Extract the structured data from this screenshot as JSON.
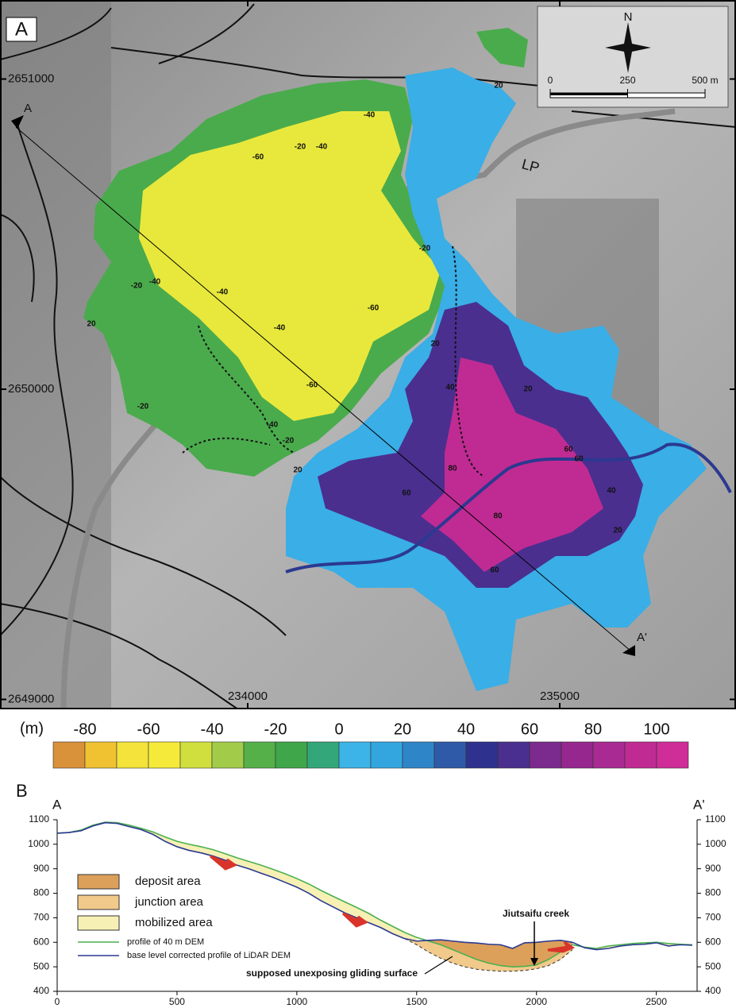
{
  "chart_data": [
    {
      "type": "map",
      "panel_label": "A",
      "northings": [
        2651000,
        2650000,
        2649000
      ],
      "eastings": [
        234000,
        235000
      ],
      "road_label": "LP",
      "north": "N",
      "contour_labels": [
        -40,
        -20,
        -40,
        -60,
        -20,
        -60,
        -40,
        -40,
        -40,
        -20,
        20,
        -60,
        -20,
        -40,
        -20,
        20,
        20,
        20,
        40,
        20,
        80,
        60,
        80,
        60,
        60,
        60,
        40,
        20
      ],
      "section_labels": [
        "A",
        "A'"
      ],
      "scalebar": {
        "xlim": [
          0,
          500
        ],
        "xticks": [
          0,
          250,
          {
            "value": 500,
            "label": "500 m"
          }
        ]
      }
    },
    {
      "type": "colorbar",
      "unit": "(m)",
      "bins": [
        -90,
        -80,
        -70,
        -60,
        -50,
        -40,
        -30,
        -20,
        -10,
        0,
        10,
        20,
        30,
        40,
        50,
        60,
        70,
        80,
        90,
        100,
        110
      ],
      "colors": [
        "#d9913a",
        "#f0c232",
        "#f3e33a",
        "#f5ea3a",
        "#d0df3e",
        "#a3cb4a",
        "#55b049",
        "#3fa64a",
        "#34a77a",
        "#3cb4e8",
        "#33a6e0",
        "#2e86c8",
        "#2f5aa8",
        "#2e318d",
        "#4a2f8f",
        "#7b2a8e",
        "#96278e",
        "#a82a92",
        "#c02b93",
        "#cf2d98"
      ],
      "xlim": [
        -90,
        110
      ],
      "xticks": [
        -80,
        -60,
        -40,
        -20,
        0,
        20,
        40,
        60,
        80,
        100
      ]
    },
    {
      "type": "line",
      "panel_label": "B",
      "section_labels": [
        "A",
        "A'"
      ],
      "x": [
        0,
        50,
        100,
        150,
        200,
        250,
        300,
        350,
        400,
        450,
        500,
        550,
        600,
        650,
        700,
        750,
        800,
        850,
        900,
        950,
        1000,
        1050,
        1100,
        1150,
        1200,
        1250,
        1300,
        1350,
        1400,
        1450,
        1500,
        1550,
        1600,
        1650,
        1700,
        1750,
        1800,
        1850,
        1900,
        1950,
        2000,
        2050,
        2100,
        2150,
        2200,
        2250,
        2300,
        2350,
        2400,
        2450,
        2500,
        2550,
        2600,
        2650
      ],
      "series": [
        {
          "name": "profile of 40 m DEM",
          "color": "#4caf50",
          "values": [
            1045,
            1048,
            1058,
            1078,
            1090,
            1088,
            1078,
            1065,
            1050,
            1030,
            1012,
            1000,
            990,
            978,
            962,
            945,
            930,
            915,
            898,
            880,
            860,
            838,
            812,
            788,
            765,
            742,
            718,
            690,
            665,
            640,
            620,
            605,
            590,
            570,
            550,
            530,
            515,
            505,
            500,
            502,
            508,
            530,
            560,
            590,
            580,
            575,
            585,
            590,
            595,
            598,
            600,
            595,
            592,
            590
          ]
        },
        {
          "name": "base level corrected profile of LiDAR DEM",
          "color": "#2b3990",
          "values": [
            1045,
            1048,
            1055,
            1075,
            1088,
            1085,
            1072,
            1060,
            1040,
            1012,
            990,
            975,
            965,
            952,
            935,
            915,
            900,
            882,
            865,
            845,
            825,
            800,
            770,
            745,
            720,
            700,
            680,
            660,
            635,
            615,
            605,
            608,
            610,
            605,
            600,
            597,
            592,
            590,
            575,
            598,
            600,
            605,
            608,
            600,
            578,
            570,
            575,
            585,
            590,
            592,
            598,
            585,
            590,
            588
          ]
        }
      ],
      "gliding_surface": {
        "label": "supposed unexposing gliding surface",
        "values": [
          null,
          null,
          null,
          null,
          null,
          null,
          null,
          null,
          null,
          null,
          null,
          null,
          null,
          null,
          null,
          null,
          null,
          null,
          null,
          null,
          null,
          null,
          null,
          null,
          null,
          null,
          null,
          null,
          null,
          615,
          590,
          560,
          535,
          515,
          500,
          490,
          485,
          482,
          482,
          485,
          492,
          505,
          530,
          570,
          null,
          null,
          null,
          null,
          null,
          null,
          null,
          null,
          null,
          null
        ]
      },
      "areas": [
        {
          "name": "deposit area",
          "color": "#dca05a"
        },
        {
          "name": "junction area",
          "color": "#f1c98b"
        },
        {
          "name": "mobilized area",
          "color": "#f7f0b5"
        }
      ],
      "annotation": "Jiutsaifu creek",
      "xlim": [
        0,
        2670
      ],
      "ylim": [
        400,
        1100
      ],
      "xticks": [
        0,
        500,
        1000,
        1500,
        2000,
        2500
      ],
      "yticks": [
        400,
        500,
        600,
        700,
        800,
        900,
        1000,
        1100
      ],
      "y2lim": [
        400,
        1100
      ],
      "y2ticks": [
        400,
        500,
        600,
        700,
        800,
        900,
        1000,
        1100
      ]
    }
  ]
}
